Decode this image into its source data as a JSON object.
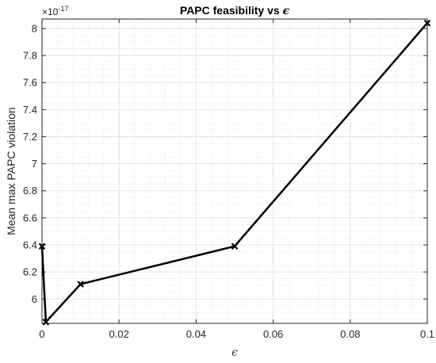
{
  "chart_data": {
    "type": "line",
    "title_prefix": "PAPC feasibility vs ",
    "title_symbol": "ϵ",
    "xlabel": "ϵ",
    "ylabel": "Mean max PAPC violation",
    "y_exponent_base": "×10",
    "y_exponent_power": "-17",
    "xlim": [
      0,
      0.1
    ],
    "ylim": [
      5.82,
      8.07
    ],
    "x_ticks": [
      0,
      0.02,
      0.04,
      0.06,
      0.08,
      0.1
    ],
    "x_tick_labels": [
      "0",
      "0.02",
      "0.04",
      "0.06",
      "0.08",
      "0.1"
    ],
    "y_ticks": [
      6,
      6.2,
      6.4,
      6.6,
      6.8,
      7,
      7.2,
      7.4,
      7.6,
      7.8,
      8
    ],
    "y_tick_labels": [
      "6",
      "6.2",
      "6.4",
      "6.6",
      "6.8",
      "7",
      "7.2",
      "7.4",
      "7.6",
      "7.8",
      "8"
    ],
    "grid": true,
    "minor_grid": true,
    "series": [
      {
        "x": [
          0,
          0.001,
          0.01,
          0.05,
          0.1
        ],
        "values": [
          6.39,
          5.83,
          6.11,
          6.39,
          8.04
        ],
        "color": "#000000",
        "marker": "x"
      }
    ]
  }
}
